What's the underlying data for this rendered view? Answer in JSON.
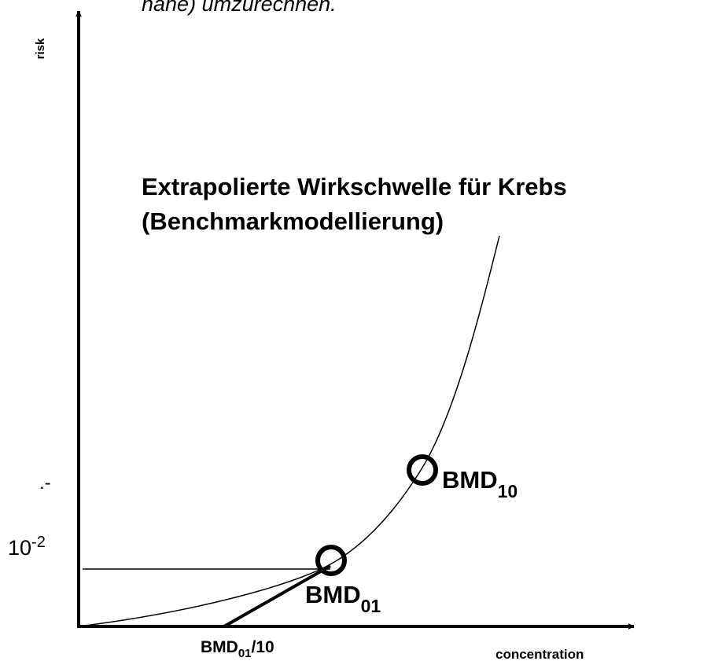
{
  "header": {
    "text": "nahe) umzurechnen."
  },
  "axes": {
    "y_label": "risk",
    "x_label": "concentration",
    "y_mark_upper": ".-",
    "y_mark_lower": {
      "base": "10",
      "sup": "-2"
    }
  },
  "title": {
    "line1": "Extrapolierte Wirkschwelle für Krebs",
    "line2": "(Benchmarkmodellierung)"
  },
  "points": [
    {
      "main": "BMD",
      "sub": "10"
    },
    {
      "main": "BMD",
      "sub": "01"
    },
    {
      "main": "BMD",
      "sub": "01",
      "suffix": "/10"
    }
  ]
}
